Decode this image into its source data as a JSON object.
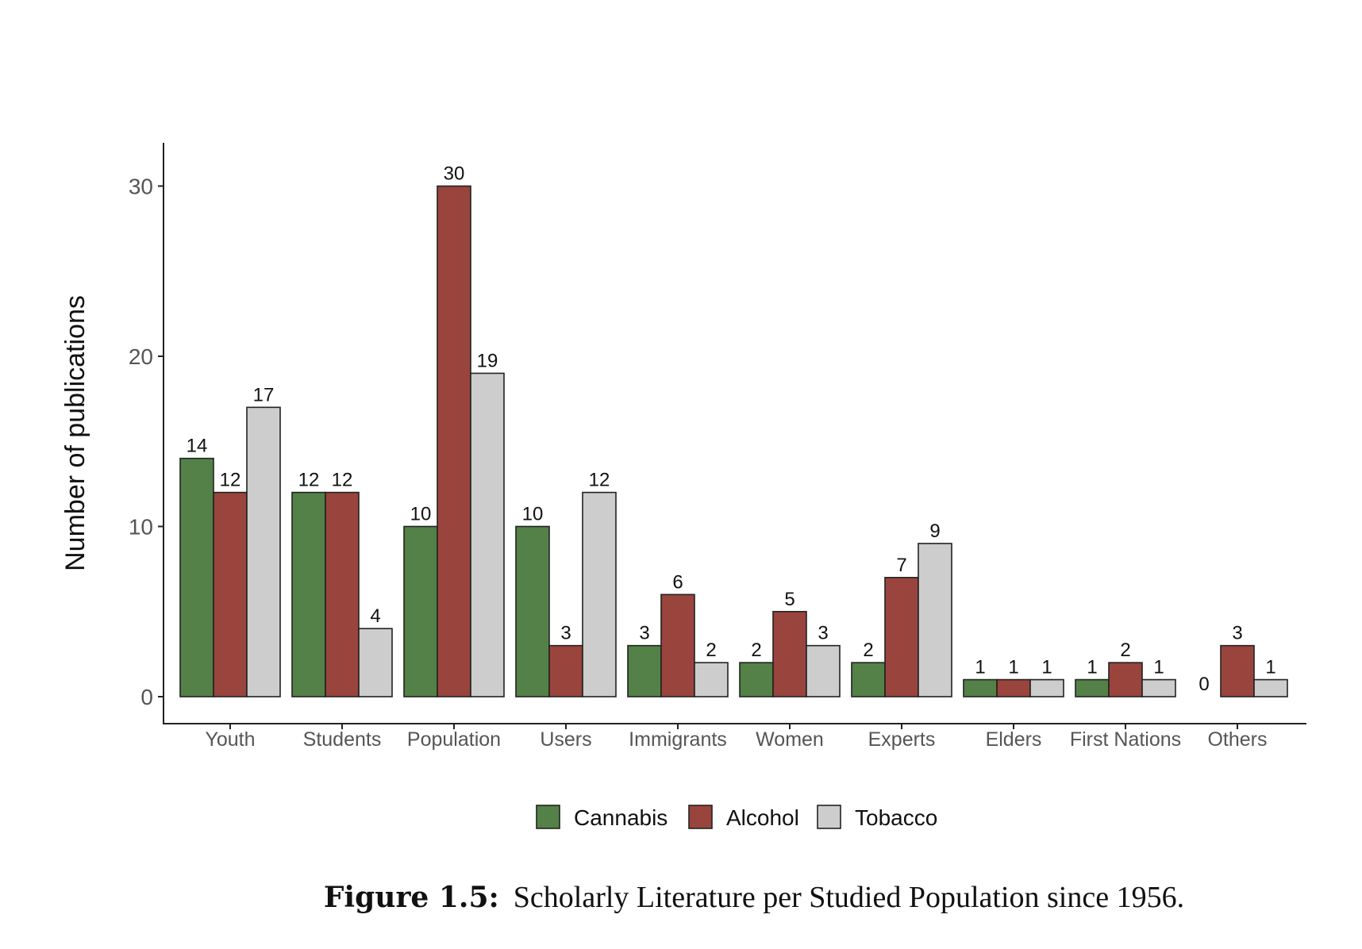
{
  "chart_data": {
    "type": "bar",
    "ylabel": "Number of publications",
    "xlabel": "",
    "ylim": [
      0,
      32
    ],
    "yticks": [
      0,
      10,
      20,
      30
    ],
    "grid": false,
    "legend_position": "bottom",
    "categories": [
      "Youth",
      "Students",
      "Population",
      "Users",
      "Immigrants",
      "Women",
      "Experts",
      "Elders",
      "First Nations",
      "Others"
    ],
    "series": [
      {
        "name": "Cannabis",
        "color": "#538147",
        "values": [
          14,
          12,
          10,
          10,
          3,
          2,
          2,
          1,
          1,
          0
        ]
      },
      {
        "name": "Alcohol",
        "color": "#99443d",
        "values": [
          12,
          12,
          30,
          3,
          6,
          5,
          7,
          1,
          2,
          3
        ]
      },
      {
        "name": "Tobacco",
        "color": "#cdcdcd",
        "values": [
          17,
          4,
          19,
          12,
          2,
          3,
          9,
          1,
          1,
          1
        ]
      }
    ]
  },
  "caption": {
    "label": "Figure 1.5:",
    "text": "Scholarly Literature per Studied Population since 1956."
  }
}
